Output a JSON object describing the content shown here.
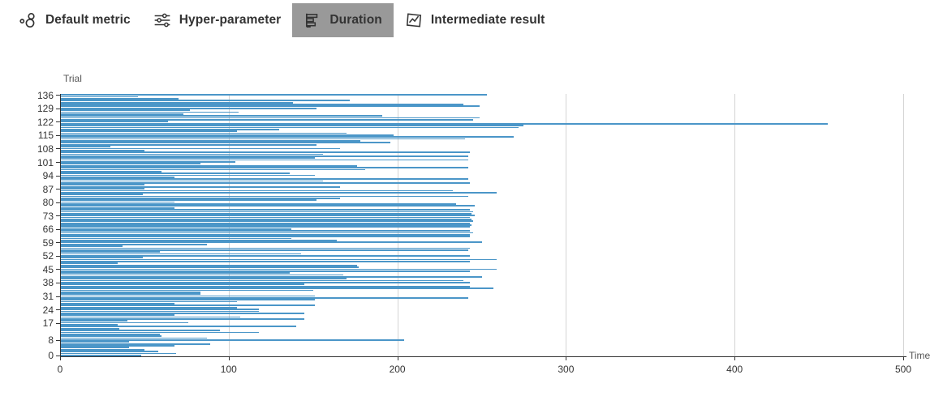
{
  "header": {
    "tabs": [
      {
        "label": "Default metric",
        "icon": "scatter-icon",
        "selected": false
      },
      {
        "label": "Hyper-parameter",
        "icon": "sliders-icon",
        "selected": false
      },
      {
        "label": "Duration",
        "icon": "bar-chart-icon",
        "selected": true
      },
      {
        "label": "Intermediate result",
        "icon": "line-chart-icon",
        "selected": false
      }
    ],
    "selected_tab_bg": "#999999"
  },
  "chart_data": {
    "type": "bar",
    "orientation": "horizontal",
    "title": "",
    "xlabel": "Time",
    "ylabel": "Trial",
    "xlim": [
      0,
      500
    ],
    "x_ticks": [
      0,
      100,
      200,
      300,
      400,
      500
    ],
    "y_tick_trials": [
      0,
      8,
      17,
      24,
      31,
      38,
      45,
      52,
      59,
      66,
      73,
      80,
      87,
      94,
      101,
      108,
      115,
      122,
      129,
      136
    ],
    "grid": true,
    "legend": "none",
    "bar_color": "#4b96c8",
    "axis_color": "#333333",
    "grid_color": "#d4d4d4",
    "trial_count": 137,
    "durations_by_trial": [
      48,
      69,
      58,
      50,
      41,
      68,
      89,
      41,
      204,
      87,
      60,
      59,
      118,
      95,
      35,
      140,
      34,
      76,
      40,
      145,
      107,
      68,
      145,
      118,
      118,
      105,
      151,
      68,
      105,
      151,
      242,
      151,
      83,
      83,
      150,
      257,
      243,
      145,
      243,
      239,
      170,
      250,
      168,
      136,
      243,
      259,
      177,
      176,
      34,
      243,
      259,
      49,
      243,
      143,
      59,
      242,
      243,
      37,
      87,
      250,
      164,
      137,
      243,
      243,
      245,
      243,
      137,
      243,
      244,
      243,
      245,
      244,
      243,
      246,
      244,
      245,
      243,
      68,
      246,
      235,
      68,
      152,
      166,
      242,
      49,
      259,
      233,
      50,
      166,
      50,
      243,
      156,
      242,
      68,
      151,
      136,
      60,
      181,
      242,
      176,
      83,
      104,
      242,
      151,
      242,
      156,
      243,
      50,
      166,
      30,
      152,
      196,
      178,
      240,
      269,
      198,
      170,
      105,
      130,
      272,
      275,
      455,
      64,
      245,
      249,
      191,
      73,
      106,
      77,
      152,
      249,
      239,
      138,
      172,
      70,
      46,
      253
    ]
  }
}
